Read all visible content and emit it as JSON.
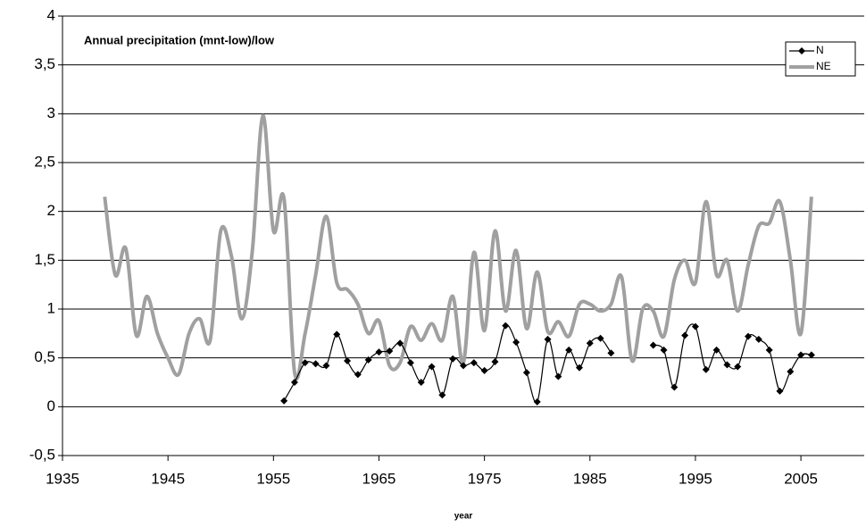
{
  "chart_data": {
    "type": "line",
    "title": "Annual precipitation (mnt-low)/low",
    "x_label": "year",
    "x": [
      1939,
      1940,
      1941,
      1942,
      1943,
      1944,
      1945,
      1946,
      1947,
      1948,
      1949,
      1950,
      1951,
      1952,
      1953,
      1954,
      1955,
      1956,
      1957,
      1958,
      1959,
      1960,
      1961,
      1962,
      1963,
      1964,
      1965,
      1966,
      1967,
      1968,
      1969,
      1970,
      1971,
      1972,
      1973,
      1974,
      1975,
      1976,
      1977,
      1978,
      1979,
      1980,
      1981,
      1982,
      1983,
      1984,
      1985,
      1986,
      1987,
      1988,
      1989,
      1990,
      1991,
      1992,
      1993,
      1994,
      1995,
      1996,
      1997,
      1998,
      1999,
      2000,
      2001,
      2002,
      2003,
      2004,
      2005,
      2006
    ],
    "series": [
      {
        "name": "N",
        "color": "#000000",
        "marker": "diamond",
        "values": [
          null,
          null,
          null,
          null,
          null,
          null,
          null,
          null,
          null,
          null,
          null,
          null,
          null,
          null,
          null,
          null,
          null,
          0.06,
          0.25,
          0.45,
          0.44,
          0.42,
          0.74,
          0.47,
          0.33,
          0.48,
          0.56,
          0.57,
          0.65,
          0.45,
          0.25,
          0.41,
          0.12,
          0.49,
          0.42,
          0.45,
          0.37,
          0.46,
          0.83,
          0.66,
          0.35,
          0.05,
          0.69,
          0.31,
          0.58,
          0.4,
          0.65,
          0.7,
          0.55,
          null,
          null,
          null,
          0.63,
          0.58,
          0.2,
          0.73,
          0.82,
          0.38,
          0.58,
          0.43,
          0.41,
          0.72,
          0.69,
          0.58,
          0.16,
          0.36,
          0.53,
          0.53
        ]
      },
      {
        "name": "NE",
        "color": "#a0a0a0",
        "marker": "none",
        "values": [
          2.15,
          1.35,
          1.62,
          0.73,
          1.13,
          0.75,
          0.5,
          0.33,
          0.75,
          0.9,
          0.68,
          1.8,
          1.55,
          0.9,
          1.6,
          2.98,
          1.8,
          2.13,
          0.35,
          0.75,
          1.35,
          1.95,
          1.27,
          1.2,
          1.05,
          0.75,
          0.88,
          0.42,
          0.45,
          0.82,
          0.68,
          0.85,
          0.68,
          1.13,
          0.45,
          1.58,
          0.78,
          1.8,
          0.98,
          1.6,
          0.8,
          1.38,
          0.77,
          0.87,
          0.72,
          1.05,
          1.05,
          0.98,
          1.05,
          1.33,
          0.47,
          1.0,
          0.98,
          0.72,
          1.3,
          1.5,
          1.27,
          2.1,
          1.35,
          1.5,
          0.98,
          1.45,
          1.85,
          1.88,
          2.1,
          1.5,
          0.75,
          2.15
        ]
      }
    ],
    "xlim": [
      1935,
      2011
    ],
    "xticks": [
      1935,
      1945,
      1955,
      1965,
      1975,
      1985,
      1995,
      2005
    ],
    "ylim": [
      -0.5,
      4
    ],
    "yticks": [
      {
        "value": -0.5,
        "label": "-0,5"
      },
      0,
      {
        "value": 0.5,
        "label": "0,5"
      },
      1,
      {
        "value": 1.5,
        "label": "1,5"
      },
      2,
      {
        "value": 2.5,
        "label": "2,5"
      },
      3,
      {
        "value": 3.5,
        "label": "3,5"
      },
      4
    ],
    "grid": true,
    "smooth": true,
    "legend": "top-right"
  }
}
